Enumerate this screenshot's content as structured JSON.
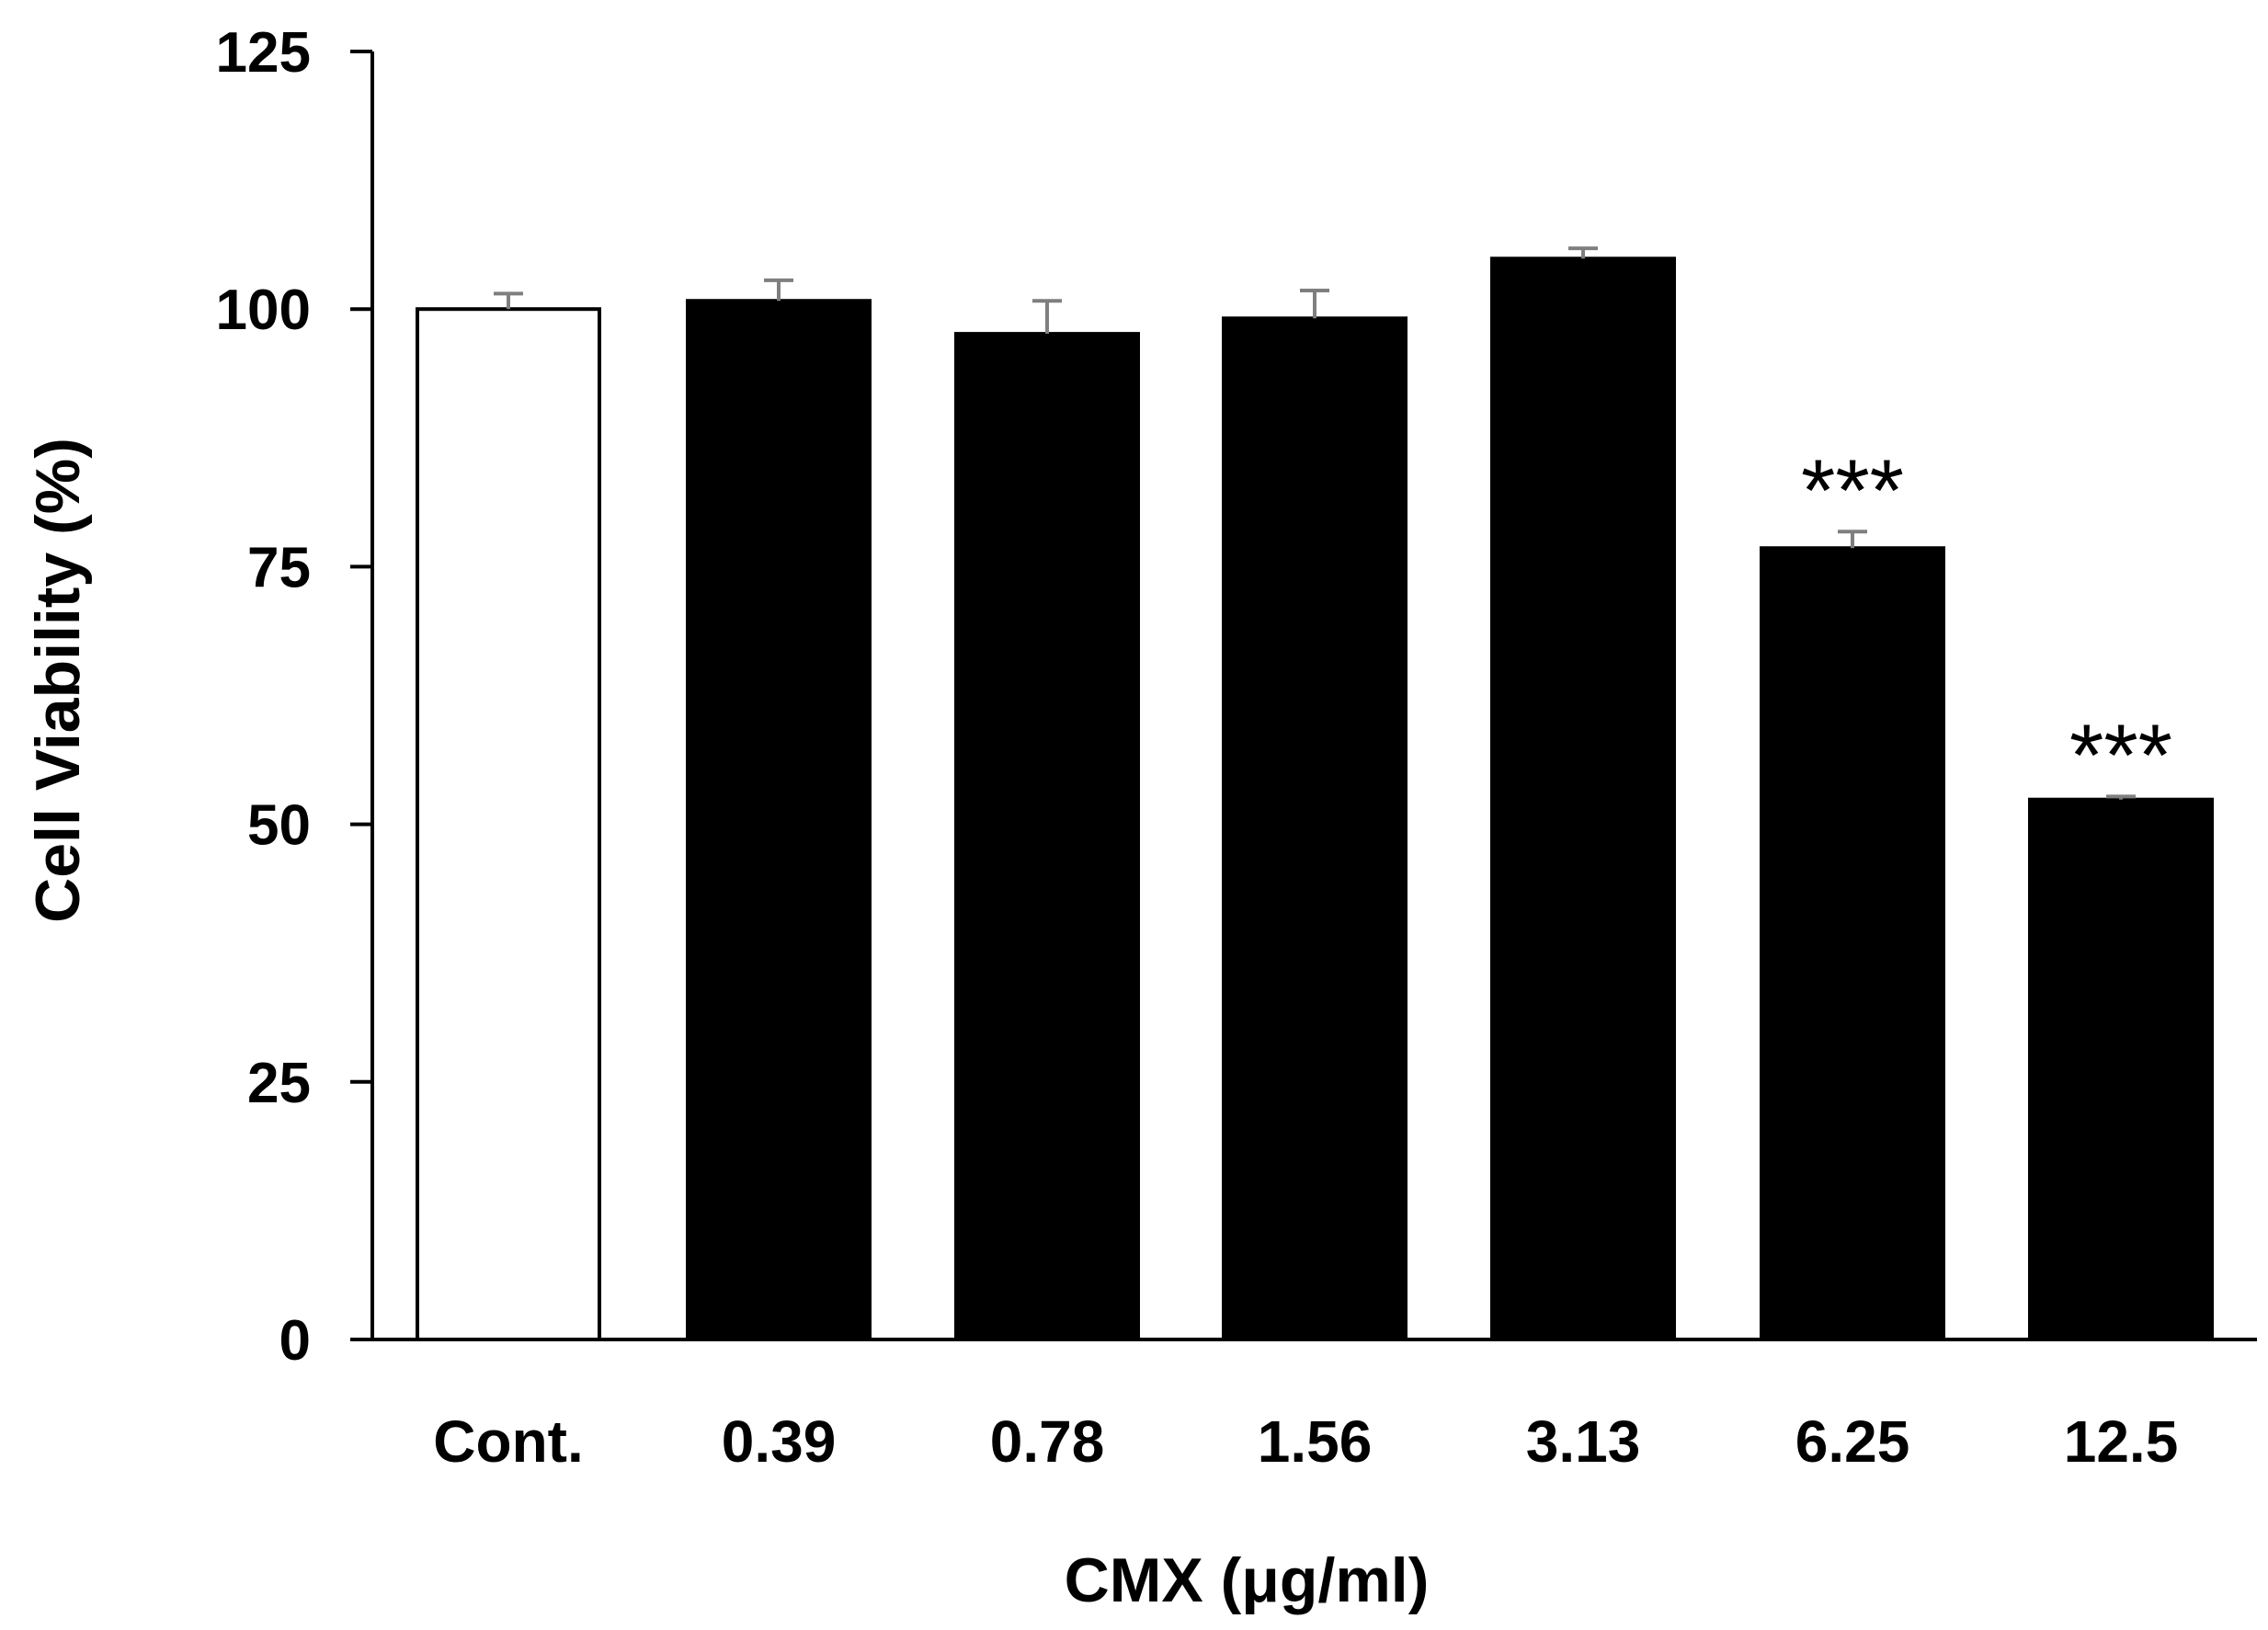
{
  "chart_data": {
    "type": "bar",
    "title": "",
    "xlabel": "CMX (μg/ml)",
    "ylabel": "Cell Viability (%)",
    "ylim": [
      0,
      125
    ],
    "yticks": [
      0,
      25,
      50,
      75,
      100,
      125
    ],
    "categories": [
      "Cont.",
      "0.39",
      "0.78",
      "1.56",
      "3.13",
      "6.25",
      "12.5"
    ],
    "values": [
      100.0,
      100.8,
      97.6,
      99.1,
      104.9,
      76.8,
      52.4
    ],
    "errors": [
      1.5,
      2.0,
      3.2,
      2.7,
      1.0,
      1.6,
      0.3
    ],
    "significance": [
      "",
      "",
      "",
      "",
      "",
      "***",
      "***"
    ],
    "grid": false,
    "legend": "none",
    "colors": {
      "control_fill": "#ffffff",
      "treatment_fill": "#000000",
      "bar_stroke": "#000000",
      "error_bar": "#7f7f7f",
      "axis": "#000000"
    }
  }
}
